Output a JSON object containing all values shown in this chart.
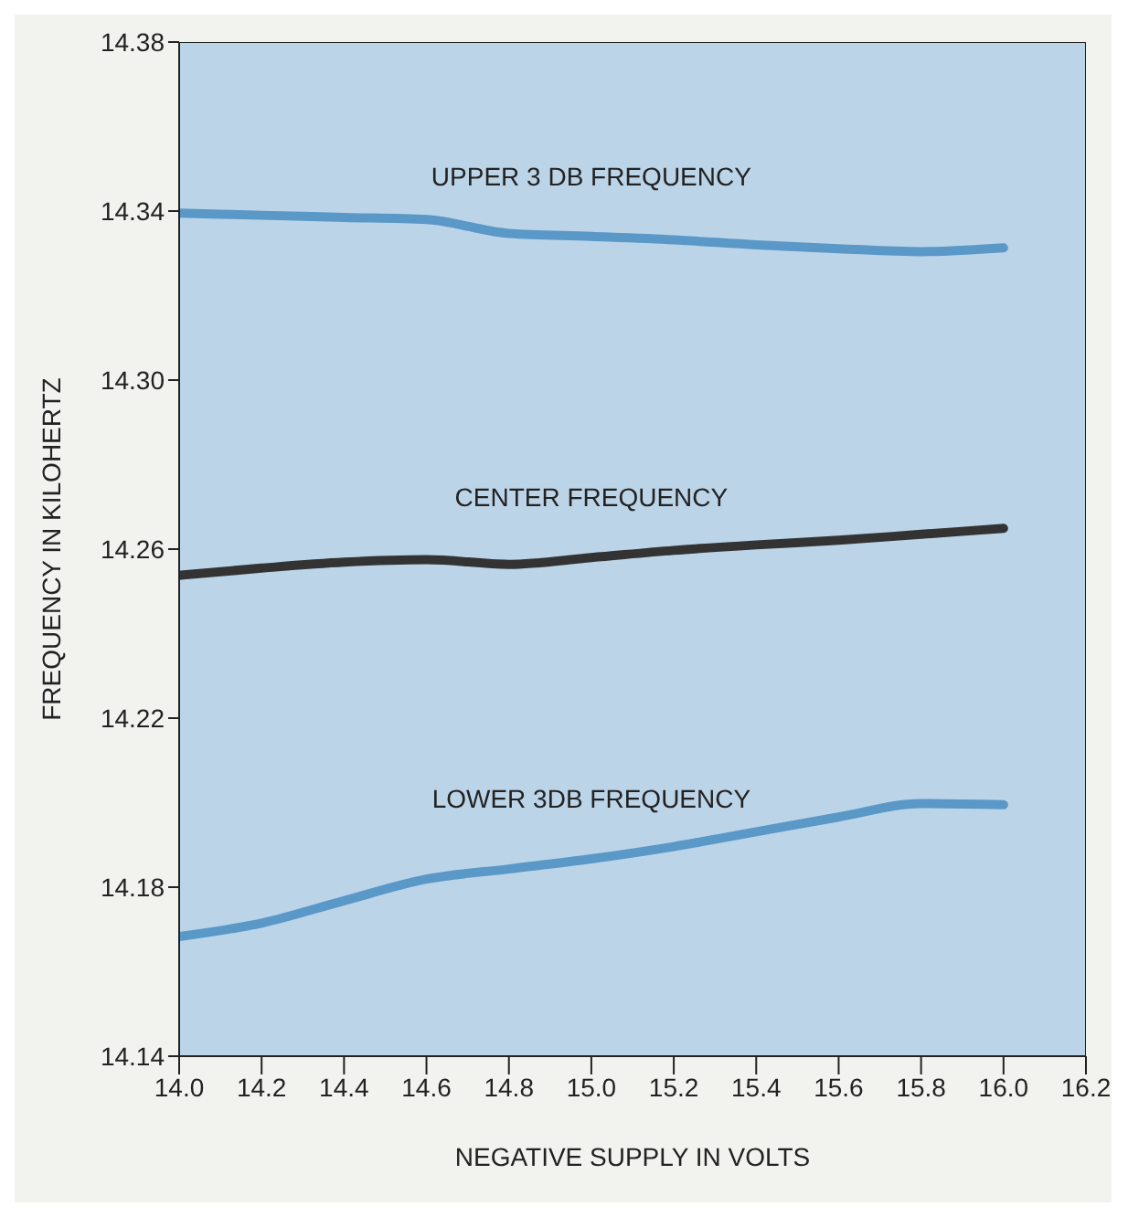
{
  "chart_data": {
    "type": "line",
    "xlabel": "NEGATIVE SUPPLY IN VOLTS",
    "ylabel": "FREQUENCY IN KILOHERTZ",
    "x": [
      14.0,
      14.2,
      14.4,
      14.6,
      14.8,
      15.0,
      15.2,
      15.4,
      15.6,
      15.8,
      16.0
    ],
    "series": [
      {
        "name": "UPPER 3 DB FREQUENCY",
        "color": "#5a98c8",
        "values": [
          14.3395,
          14.339,
          14.3385,
          14.338,
          14.3347,
          14.334,
          14.3332,
          14.332,
          14.3311,
          14.3304,
          14.3313
        ]
      },
      {
        "name": "CENTER FREQUENCY",
        "color": "#333333",
        "values": [
          14.2538,
          14.2555,
          14.2569,
          14.2575,
          14.2564,
          14.258,
          14.2597,
          14.261,
          14.2621,
          14.2635,
          14.2649
        ]
      },
      {
        "name": "LOWER 3DB FREQUENCY",
        "color": "#5a98c8",
        "values": [
          14.1683,
          14.1715,
          14.1768,
          14.1819,
          14.1843,
          14.1867,
          14.1896,
          14.1931,
          14.1966,
          14.1998,
          14.1995
        ]
      }
    ],
    "xlim": [
      14.0,
      16.2
    ],
    "xticks": [
      {
        "value": 14,
        "label": "14.0"
      },
      14.2,
      14.4,
      14.6,
      14.8,
      {
        "value": 15,
        "label": "15.0"
      },
      15.2,
      15.4,
      15.6,
      15.8,
      {
        "value": 16,
        "label": "16.0"
      },
      16.2
    ],
    "ylim": [
      14.14,
      14.38
    ],
    "yticks": [
      14.14,
      14.18,
      14.22,
      14.26,
      {
        "value": 14.3,
        "label": "14.30"
      },
      14.34,
      14.38
    ],
    "grid": false,
    "legend": false,
    "marker": "none",
    "line_style": "solid"
  }
}
